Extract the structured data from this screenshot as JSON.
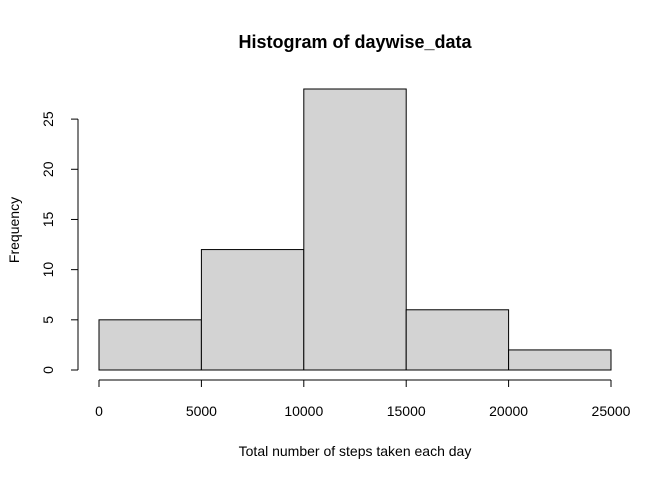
{
  "chart_data": {
    "type": "bar",
    "subtype": "histogram",
    "title": "Histogram of daywise_data",
    "xlabel": "Total number of steps taken each day",
    "ylabel": "Frequency",
    "bins": [
      {
        "start": 0,
        "end": 5000,
        "count": 5
      },
      {
        "start": 5000,
        "end": 10000,
        "count": 12
      },
      {
        "start": 10000,
        "end": 15000,
        "count": 28
      },
      {
        "start": 15000,
        "end": 20000,
        "count": 6
      },
      {
        "start": 20000,
        "end": 25000,
        "count": 2
      }
    ],
    "xlim": [
      0,
      25000
    ],
    "ylim": [
      0,
      28
    ],
    "x_ticks": [
      0,
      5000,
      10000,
      15000,
      20000,
      25000
    ],
    "y_ticks": [
      0,
      5,
      10,
      15,
      20,
      25
    ],
    "bar_fill": "#d3d3d3",
    "bar_stroke": "#000000",
    "grid": false,
    "legend": "none"
  }
}
